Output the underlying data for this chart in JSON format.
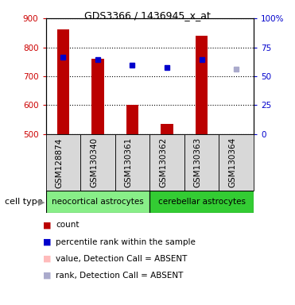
{
  "title": "GDS3366 / 1436945_x_at",
  "samples": [
    "GSM128874",
    "GSM130340",
    "GSM130361",
    "GSM130362",
    "GSM130363",
    "GSM130364"
  ],
  "bar_values": [
    862,
    760,
    600,
    536,
    840,
    500
  ],
  "bar_baseline": 500,
  "bar_colors": [
    "#bb0000",
    "#bb0000",
    "#bb0000",
    "#bb0000",
    "#bb0000",
    "#ffbbbb"
  ],
  "rank_values": [
    765,
    757,
    738,
    730,
    757,
    724
  ],
  "rank_colors": [
    "#0000cc",
    "#0000cc",
    "#0000cc",
    "#0000cc",
    "#0000cc",
    "#aaaacc"
  ],
  "ylim_left": [
    500,
    900
  ],
  "ylim_right": [
    0,
    100
  ],
  "yticks_left": [
    500,
    600,
    700,
    800,
    900
  ],
  "yticks_right": [
    0,
    25,
    50,
    75,
    100
  ],
  "ytick_right_labels": [
    "0",
    "25",
    "50",
    "75",
    "100%"
  ],
  "cell_types": [
    {
      "label": "neocortical astrocytes",
      "start": 0,
      "end": 3,
      "color": "#88ee88"
    },
    {
      "label": "cerebellar astrocytes",
      "start": 3,
      "end": 6,
      "color": "#33cc33"
    }
  ],
  "cell_type_label": "cell type",
  "legend_items": [
    {
      "color": "#bb0000",
      "label": "count"
    },
    {
      "color": "#0000cc",
      "label": "percentile rank within the sample"
    },
    {
      "color": "#ffbbbb",
      "label": "value, Detection Call = ABSENT"
    },
    {
      "color": "#aaaacc",
      "label": "rank, Detection Call = ABSENT"
    }
  ],
  "bar_width": 0.35,
  "plot_bg": "#ffffff",
  "xtick_area_bg": "#d8d8d8",
  "grid_color": "#000000",
  "title_fontsize": 9,
  "axis_fontsize": 8,
  "tick_fontsize": 7.5,
  "legend_fontsize": 7.5
}
